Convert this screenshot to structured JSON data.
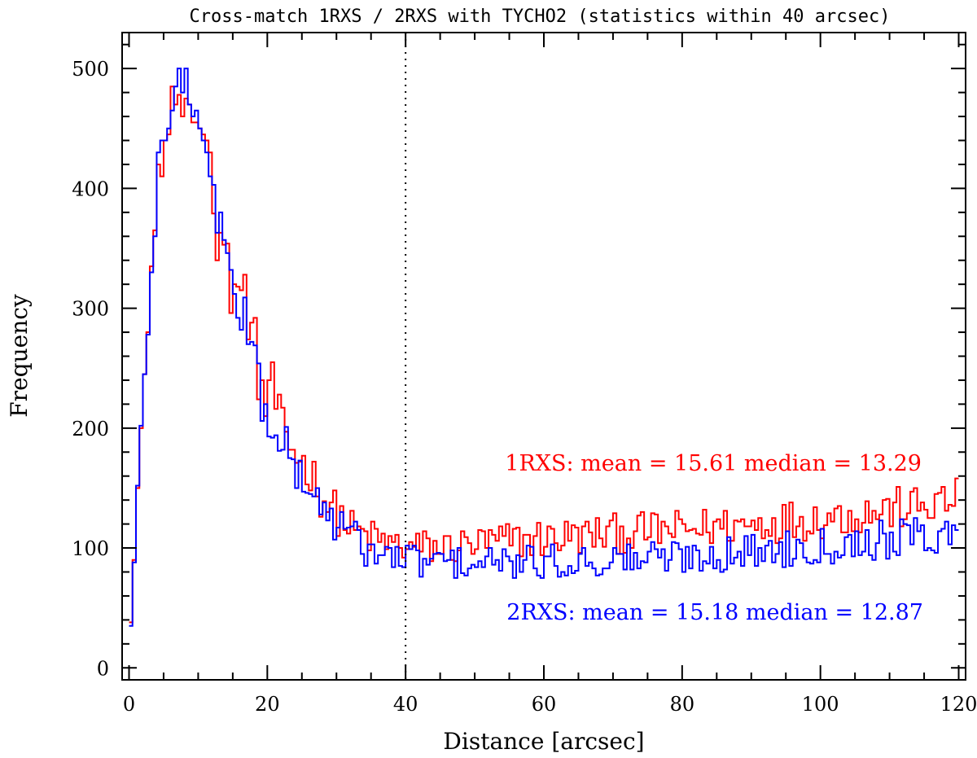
{
  "chart_data": {
    "type": "histogram",
    "title": "Cross-match 1RXS / 2RXS with TYCHO2 (statistics within 40 arcsec)",
    "xlabel": "Distance [arcsec]",
    "ylabel": "Frequency",
    "xlim": [
      -1,
      121
    ],
    "ylim": [
      -10,
      530
    ],
    "bin_width": 0.5,
    "x_start": 0,
    "xticks": [
      0,
      20,
      40,
      60,
      80,
      100,
      120
    ],
    "yticks": [
      0,
      100,
      200,
      300,
      400,
      500
    ],
    "reference_line": {
      "x": 40,
      "style": "dotted"
    },
    "series": [
      {
        "name": "1RXS",
        "color": "#ff0000",
        "annotation": "1RXS: mean = 15.61 median = 13.29",
        "mean": 15.61,
        "median": 13.29,
        "anchors": [
          [
            0,
            38
          ],
          [
            0.5,
            90
          ],
          [
            1,
            150
          ],
          [
            1.5,
            200
          ],
          [
            2,
            245
          ],
          [
            2.5,
            280
          ],
          [
            3,
            335
          ],
          [
            3.5,
            365
          ],
          [
            4,
            420
          ],
          [
            4.5,
            410
          ],
          [
            5,
            440
          ],
          [
            5.5,
            445
          ],
          [
            6,
            485
          ],
          [
            6.5,
            470
          ],
          [
            7,
            478
          ],
          [
            7.5,
            460
          ],
          [
            8,
            475
          ],
          [
            8.5,
            470
          ],
          [
            9,
            455
          ],
          [
            9.5,
            455
          ],
          [
            10,
            450
          ],
          [
            10.5,
            445
          ],
          [
            11,
            440
          ],
          [
            11.5,
            430
          ],
          [
            12,
            410
          ],
          [
            12.5,
            370
          ],
          [
            13,
            360
          ],
          [
            13.5,
            345
          ],
          [
            14,
            330
          ],
          [
            14.5,
            318
          ],
          [
            15,
            320
          ],
          [
            15.5,
            315
          ],
          [
            16,
            310
          ],
          [
            16.5,
            312
          ],
          [
            17,
            300
          ],
          [
            17.5,
            275
          ],
          [
            18,
            268
          ],
          [
            18.5,
            245
          ],
          [
            19,
            230
          ],
          [
            19.5,
            212
          ],
          [
            20,
            245
          ],
          [
            21,
            220
          ],
          [
            22,
            195
          ],
          [
            23,
            185
          ],
          [
            24,
            180
          ],
          [
            25,
            170
          ],
          [
            26,
            165
          ],
          [
            27,
            150
          ],
          [
            28,
            140
          ],
          [
            29,
            135
          ],
          [
            30,
            128
          ],
          [
            31,
            122
          ],
          [
            32,
            115
          ],
          [
            33,
            112
          ],
          [
            34,
            110
          ],
          [
            35,
            108
          ],
          [
            36,
            106
          ],
          [
            37,
            104
          ],
          [
            38,
            103
          ],
          [
            39,
            102
          ],
          [
            40,
            100
          ],
          [
            45,
            100
          ],
          [
            50,
            103
          ],
          [
            55,
            106
          ],
          [
            60,
            108
          ],
          [
            65,
            110
          ],
          [
            70,
            112
          ],
          [
            75,
            114
          ],
          [
            80,
            115
          ],
          [
            85,
            118
          ],
          [
            90,
            120
          ],
          [
            95,
            123
          ],
          [
            100,
            125
          ],
          [
            105,
            128
          ],
          [
            110,
            132
          ],
          [
            115,
            135
          ],
          [
            119.5,
            140
          ]
        ]
      },
      {
        "name": "2RXS",
        "color": "#0000ff",
        "annotation": "2RXS: mean = 15.18 median = 12.87",
        "mean": 15.18,
        "median": 12.87,
        "anchors": [
          [
            0,
            35
          ],
          [
            0.5,
            88
          ],
          [
            1,
            152
          ],
          [
            1.5,
            202
          ],
          [
            2,
            245
          ],
          [
            2.5,
            278
          ],
          [
            3,
            330
          ],
          [
            3.5,
            360
          ],
          [
            4,
            430
          ],
          [
            4.5,
            440
          ],
          [
            5,
            440
          ],
          [
            5.5,
            450
          ],
          [
            6,
            465
          ],
          [
            6.5,
            485
          ],
          [
            7,
            500
          ],
          [
            7.5,
            480
          ],
          [
            8,
            500
          ],
          [
            8.5,
            470
          ],
          [
            9,
            460
          ],
          [
            9.5,
            465
          ],
          [
            10,
            450
          ],
          [
            10.5,
            440
          ],
          [
            11,
            430
          ],
          [
            11.5,
            410
          ],
          [
            12,
            400
          ],
          [
            12.5,
            385
          ],
          [
            13,
            370
          ],
          [
            13.5,
            345
          ],
          [
            14,
            330
          ],
          [
            14.5,
            320
          ],
          [
            15,
            315
          ],
          [
            15.5,
            305
          ],
          [
            16,
            300
          ],
          [
            16.5,
            295
          ],
          [
            17,
            285
          ],
          [
            17.5,
            265
          ],
          [
            18,
            258
          ],
          [
            18.5,
            240
          ],
          [
            19,
            225
          ],
          [
            19.5,
            210
          ],
          [
            20,
            200
          ],
          [
            21,
            205
          ],
          [
            22,
            185
          ],
          [
            23,
            175
          ],
          [
            24,
            165
          ],
          [
            25,
            155
          ],
          [
            26,
            150
          ],
          [
            27,
            140
          ],
          [
            28,
            132
          ],
          [
            29,
            125
          ],
          [
            30,
            120
          ],
          [
            31,
            115
          ],
          [
            32,
            110
          ],
          [
            33,
            105
          ],
          [
            34,
            100
          ],
          [
            35,
            97
          ],
          [
            36,
            95
          ],
          [
            37,
            93
          ],
          [
            38,
            92
          ],
          [
            39,
            91
          ],
          [
            40,
            90
          ],
          [
            45,
            88
          ],
          [
            50,
            87
          ],
          [
            55,
            87
          ],
          [
            60,
            88
          ],
          [
            65,
            89
          ],
          [
            70,
            90
          ],
          [
            75,
            92
          ],
          [
            80,
            93
          ],
          [
            85,
            95
          ],
          [
            90,
            97
          ],
          [
            95,
            100
          ],
          [
            100,
            103
          ],
          [
            105,
            105
          ],
          [
            110,
            108
          ],
          [
            115,
            110
          ],
          [
            119.5,
            112
          ]
        ]
      }
    ]
  }
}
